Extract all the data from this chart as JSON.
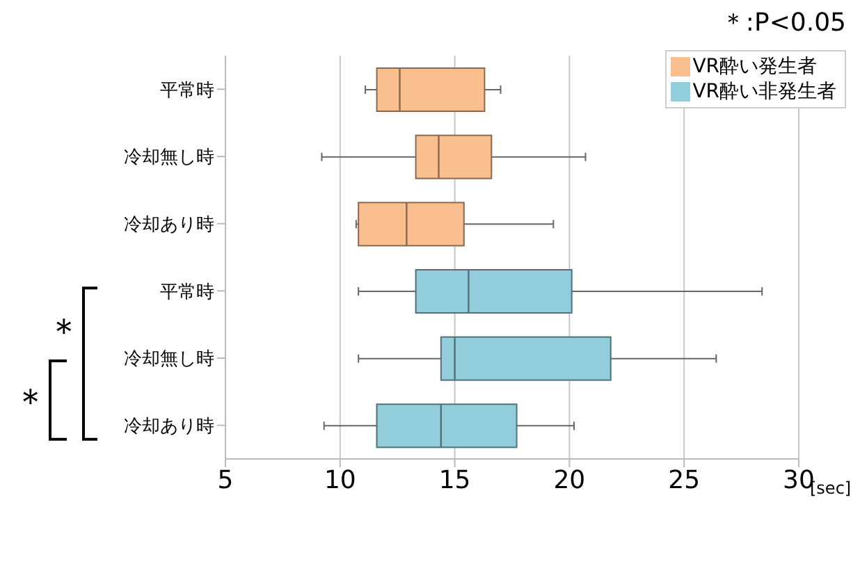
{
  "chart_data": {
    "type": "box",
    "orientation": "horizontal",
    "categories": [
      "平常時",
      "冷却無し時",
      "冷却あり時",
      "平常時",
      "冷却無し時",
      "冷却あり時"
    ],
    "series": [
      {
        "name": "VR酔い発生者",
        "color": "#f9bf8f",
        "boxes": [
          {
            "low": 11.1,
            "q1": 11.6,
            "median": 12.6,
            "q3": 16.3,
            "high": 17.0
          },
          {
            "low": 9.2,
            "q1": 13.3,
            "median": 14.3,
            "q3": 16.6,
            "high": 20.7
          },
          {
            "low": 10.7,
            "q1": 10.8,
            "median": 12.9,
            "q3": 15.4,
            "high": 19.3
          },
          null,
          null,
          null
        ]
      },
      {
        "name": "VR酔い非発生者",
        "color": "#92cddc",
        "boxes": [
          null,
          null,
          null,
          {
            "low": 10.8,
            "q1": 13.3,
            "median": 15.6,
            "q3": 20.1,
            "high": 28.4
          },
          {
            "low": 10.8,
            "q1": 14.4,
            "median": 15.0,
            "q3": 21.8,
            "high": 26.4
          },
          {
            "low": 9.3,
            "q1": 11.6,
            "median": 14.4,
            "q3": 17.7,
            "high": 20.2
          }
        ]
      }
    ],
    "xlim": [
      5,
      30
    ],
    "xticks": [
      5,
      10,
      15,
      20,
      25,
      30
    ],
    "xlabel": "[sec]",
    "grid": "x",
    "legend": "top right",
    "annotations": [
      "＊:P<0.05",
      "＊",
      "＊"
    ]
  }
}
